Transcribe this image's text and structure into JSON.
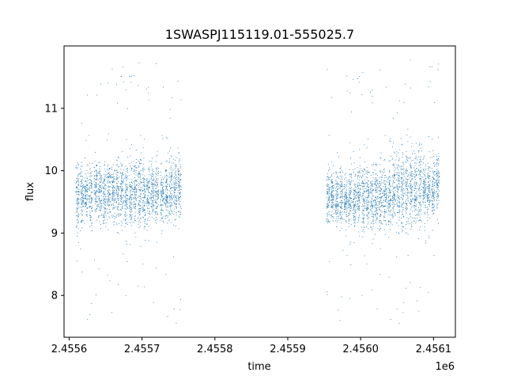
{
  "chart_data": {
    "type": "scatter",
    "title": "1SWASPJ115119.01-555025.7",
    "xlabel": "time",
    "ylabel": "flux",
    "x_offset_label": "1e6",
    "xlim": [
      2455593,
      2456130
    ],
    "ylim": [
      7.33,
      12.0
    ],
    "x_ticks": [
      2455600,
      2455700,
      2455800,
      2455900,
      2456000,
      2456100
    ],
    "x_tick_labels": [
      "2.4556",
      "2.4557",
      "2.4558",
      "2.4559",
      "2.4560",
      "2.4561"
    ],
    "y_ticks": [
      8,
      9,
      10,
      11
    ],
    "y_tick_labels": [
      "8",
      "9",
      "10",
      "11"
    ],
    "grid": false,
    "marker_color": "#1f77b4",
    "series": [
      {
        "nights": [
          [
            2455611,
            9.6,
            0.45
          ],
          [
            2455617,
            9.6,
            0.42
          ],
          [
            2455623,
            9.65,
            0.4
          ],
          [
            2455629,
            9.6,
            0.45
          ],
          [
            2455636,
            9.7,
            0.45
          ],
          [
            2455642,
            9.65,
            0.45
          ],
          [
            2455648,
            9.6,
            0.45
          ],
          [
            2455654,
            9.7,
            0.42
          ],
          [
            2455660,
            9.65,
            0.45
          ],
          [
            2455666,
            9.7,
            0.5
          ],
          [
            2455672,
            9.7,
            0.5
          ],
          [
            2455678,
            9.65,
            0.5
          ],
          [
            2455684,
            9.6,
            0.5
          ],
          [
            2455690,
            9.65,
            0.5
          ],
          [
            2455696,
            9.7,
            0.5
          ],
          [
            2455702,
            9.6,
            0.5
          ],
          [
            2455708,
            9.6,
            0.45
          ],
          [
            2455714,
            9.7,
            0.45
          ],
          [
            2455720,
            9.65,
            0.45
          ],
          [
            2455727,
            9.6,
            0.45
          ],
          [
            2455733,
            9.65,
            0.45
          ],
          [
            2455739,
            9.7,
            0.45
          ],
          [
            2455745,
            9.65,
            0.45
          ],
          [
            2455751,
            9.75,
            0.45
          ],
          [
            2455955,
            9.6,
            0.35
          ],
          [
            2455961,
            9.6,
            0.38
          ],
          [
            2455967,
            9.55,
            0.38
          ],
          [
            2455973,
            9.6,
            0.4
          ],
          [
            2455979,
            9.55,
            0.42
          ],
          [
            2455985,
            9.6,
            0.45
          ],
          [
            2455991,
            9.55,
            0.45
          ],
          [
            2455997,
            9.6,
            0.45
          ],
          [
            2456003,
            9.55,
            0.5
          ],
          [
            2456009,
            9.6,
            0.45
          ],
          [
            2456015,
            9.55,
            0.45
          ],
          [
            2456021,
            9.6,
            0.5
          ],
          [
            2456027,
            9.55,
            0.5
          ],
          [
            2456033,
            9.6,
            0.5
          ],
          [
            2456039,
            9.6,
            0.5
          ],
          [
            2456045,
            9.7,
            0.5
          ],
          [
            2456051,
            9.65,
            0.55
          ],
          [
            2456057,
            9.7,
            0.6
          ],
          [
            2456063,
            9.7,
            0.6
          ],
          [
            2456069,
            9.75,
            0.55
          ],
          [
            2456075,
            9.7,
            0.55
          ],
          [
            2456081,
            9.75,
            0.6
          ],
          [
            2456087,
            9.75,
            0.5
          ],
          [
            2456093,
            9.7,
            0.45
          ],
          [
            2456099,
            9.75,
            0.45
          ],
          [
            2456105,
            9.8,
            0.45
          ]
        ],
        "points_per_night": 95
      }
    ]
  }
}
